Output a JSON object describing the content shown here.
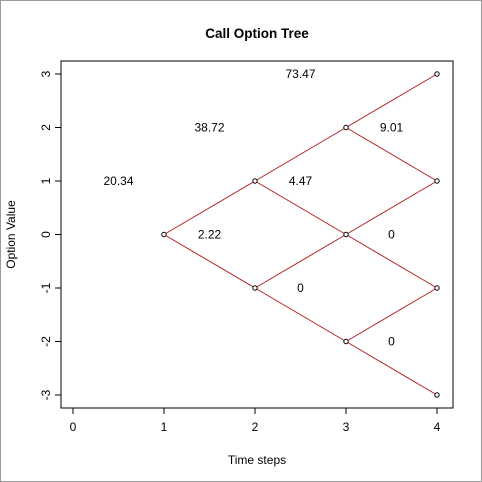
{
  "chart_data": {
    "type": "scatter",
    "title": "Call Option Tree",
    "xlabel": "Time steps",
    "ylabel": "Option Value",
    "xlim": [
      0,
      4
    ],
    "ylim": [
      -3,
      3
    ],
    "x_ticks": [
      "0",
      "1",
      "2",
      "3",
      "4"
    ],
    "y_ticks": [
      "-3",
      "-2",
      "-1",
      "0",
      "1",
      "2",
      "3"
    ],
    "grid": false,
    "line_color": "#b22222",
    "nodes": [
      {
        "x": 1,
        "y": 0
      },
      {
        "x": 2,
        "y": 1
      },
      {
        "x": 2,
        "y": -1
      },
      {
        "x": 3,
        "y": 2
      },
      {
        "x": 3,
        "y": 0
      },
      {
        "x": 3,
        "y": -2
      },
      {
        "x": 4,
        "y": 3
      },
      {
        "x": 4,
        "y": 1
      },
      {
        "x": 4,
        "y": -1
      },
      {
        "x": 4,
        "y": -3
      }
    ],
    "edges": [
      [
        [
          1,
          0
        ],
        [
          2,
          1
        ]
      ],
      [
        [
          1,
          0
        ],
        [
          2,
          -1
        ]
      ],
      [
        [
          2,
          1
        ],
        [
          3,
          2
        ]
      ],
      [
        [
          2,
          1
        ],
        [
          3,
          0
        ]
      ],
      [
        [
          2,
          -1
        ],
        [
          3,
          0
        ]
      ],
      [
        [
          2,
          -1
        ],
        [
          3,
          -2
        ]
      ],
      [
        [
          3,
          2
        ],
        [
          4,
          3
        ]
      ],
      [
        [
          3,
          2
        ],
        [
          4,
          1
        ]
      ],
      [
        [
          3,
          0
        ],
        [
          4,
          1
        ]
      ],
      [
        [
          3,
          0
        ],
        [
          4,
          -1
        ]
      ],
      [
        [
          3,
          -2
        ],
        [
          4,
          -1
        ]
      ],
      [
        [
          3,
          -2
        ],
        [
          4,
          -3
        ]
      ]
    ],
    "value_labels": [
      {
        "x": 1,
        "y": 0,
        "text": "20.34"
      },
      {
        "x": 2,
        "y": 1,
        "text": "38.72"
      },
      {
        "x": 2,
        "y": -1,
        "text": "2.22"
      },
      {
        "x": 3,
        "y": 2,
        "text": "73.47"
      },
      {
        "x": 3,
        "y": 0,
        "text": "4.47"
      },
      {
        "x": 3,
        "y": -2,
        "text": "0"
      },
      {
        "x": 4,
        "y": 1,
        "text": "9.01"
      },
      {
        "x": 4,
        "y": -1,
        "text": "0"
      },
      {
        "x": 4,
        "y": -3,
        "text": "0"
      }
    ]
  }
}
